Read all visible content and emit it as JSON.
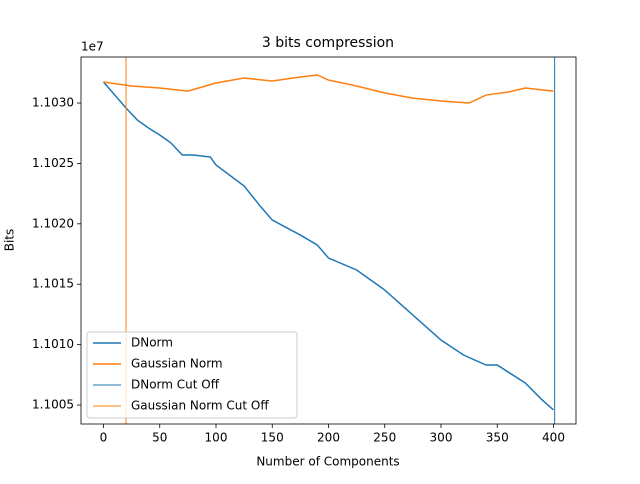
{
  "chart_data": {
    "type": "line",
    "title": "3 bits compression",
    "x_label": "Number of Components",
    "y_label": "Bits",
    "y_offset_text": "1e7",
    "xlim": [
      -20,
      420
    ],
    "xticks": [
      0,
      50,
      100,
      150,
      200,
      250,
      300,
      350,
      400
    ],
    "ylim": [
      11003430,
      11033810
    ],
    "yticks": [
      {
        "value": 11005000,
        "label": "1.1005"
      },
      {
        "value": 11010000,
        "label": "1.1010"
      },
      {
        "value": 11015000,
        "label": "1.1015"
      },
      {
        "value": 11020000,
        "label": "1.1020"
      },
      {
        "value": 11025000,
        "label": "1.1025"
      },
      {
        "value": 11030000,
        "label": "1.1030"
      }
    ],
    "legend_position": "lower left",
    "series": [
      {
        "name": "DNorm",
        "color": "#1f77b4",
        "x": [
          0,
          10,
          20,
          30,
          40,
          50,
          60,
          70,
          80,
          95,
          100,
          125,
          140,
          150,
          175,
          190,
          200,
          225,
          250,
          275,
          300,
          320,
          340,
          350,
          375,
          390,
          400
        ],
        "values": [
          11031740,
          11030660,
          11029590,
          11028600,
          11027930,
          11027350,
          11026690,
          11025700,
          11025700,
          11025530,
          11024870,
          11023130,
          11021390,
          11020310,
          11019070,
          11018250,
          11017170,
          11016180,
          11014520,
          11012450,
          11010380,
          11009140,
          11008310,
          11008310,
          11006820,
          11005410,
          11004590
        ]
      },
      {
        "name": "Gaussian Norm",
        "color": "#ff7f0e",
        "x": [
          0,
          25,
          50,
          75,
          100,
          125,
          150,
          175,
          190,
          200,
          225,
          250,
          275,
          300,
          325,
          340,
          360,
          375,
          400
        ],
        "values": [
          11031740,
          11031410,
          11031240,
          11030990,
          11031660,
          11032070,
          11031820,
          11032150,
          11032320,
          11031900,
          11031410,
          11030830,
          11030410,
          11030170,
          11030000,
          11030660,
          11030910,
          11031240,
          11030990
        ]
      }
    ],
    "vlines": [
      {
        "name": "DNorm Cut Off",
        "color": "#1f77b4",
        "x": 401
      },
      {
        "name": "Gaussian Norm Cut Off",
        "color": "#ff7f0e",
        "x": 20
      }
    ]
  }
}
